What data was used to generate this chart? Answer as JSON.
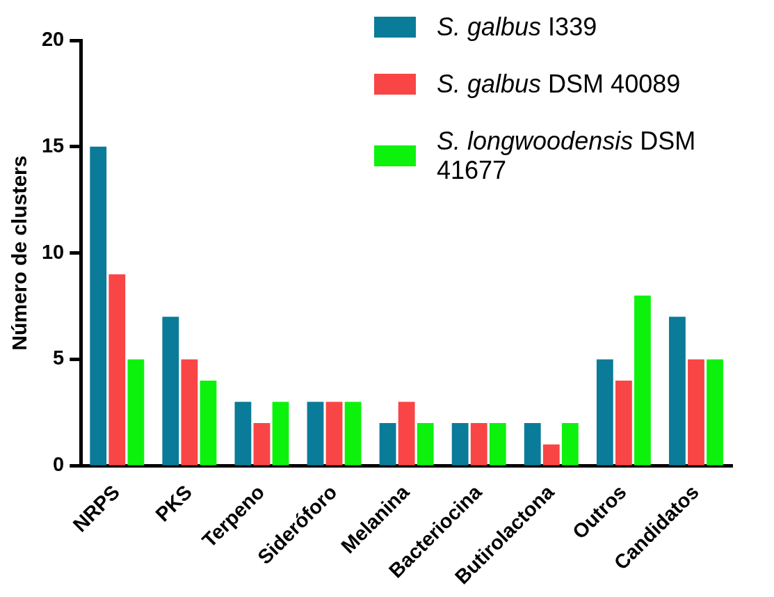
{
  "chart_data": {
    "type": "bar",
    "ylabel": "Número de clusters",
    "categories": [
      "NRPS",
      "PKS",
      "Terpeno",
      "Sideróforo",
      "Melanina",
      "Bacteriocina",
      "Butirolactona",
      "Outros",
      "Candidatos"
    ],
    "series": [
      {
        "name": "S. galbus I339",
        "color": "#0a7b98",
        "values": [
          15,
          7,
          3,
          3,
          2,
          2,
          2,
          5,
          7
        ]
      },
      {
        "name": "S. galbus DSM 40089",
        "color": "#f94545",
        "values": [
          9,
          5,
          2,
          3,
          3,
          2,
          1,
          4,
          5
        ]
      },
      {
        "name": "S. longwoodensis DSM 41677",
        "color": "#0df20d",
        "values": [
          5,
          4,
          3,
          3,
          2,
          2,
          2,
          8,
          5
        ]
      }
    ],
    "ylim": [
      0,
      20
    ],
    "yticks": [
      0,
      5,
      10,
      15,
      20
    ],
    "grid": false,
    "legend": "top right"
  }
}
